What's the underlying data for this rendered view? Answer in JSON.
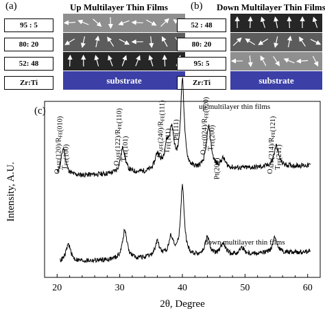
{
  "panel_a": {
    "letter": "(a)",
    "title": "Up Multilayer Thin Films",
    "ratio_header": "Zr:Ti",
    "layers": [
      {
        "ratio": "95 : 5",
        "color": "#8f8f8f"
      },
      {
        "ratio": "80: 20",
        "color": "#5c5c5c"
      },
      {
        "ratio": "52: 48",
        "color": "#262626"
      }
    ],
    "substrate": "substrate"
  },
  "panel_b": {
    "letter": "(b)",
    "title": "Down Multilayer Thin Films",
    "ratio_header": "Zr:Ti",
    "layers": [
      {
        "ratio": "52 : 48",
        "color": "#262626"
      },
      {
        "ratio": "80: 20",
        "color": "#5c5c5c"
      },
      {
        "ratio": "95: 5",
        "color": "#8f8f8f"
      }
    ],
    "substrate": "substrate"
  },
  "colors": {
    "substrate": "#3b3fa6",
    "arrow": "#ffffff",
    "trace": "#000000"
  },
  "chart_data": {
    "panel_letter": "(c)",
    "type": "line",
    "xlabel": "2θ, Degree",
    "ylabel": "Intensity, A.U.",
    "xlim": [
      18,
      62
    ],
    "xticks": [
      20,
      30,
      40,
      50,
      60
    ],
    "series": [
      {
        "name": "up multilayer thin films",
        "baseline": 1.0,
        "peaks": [
          [
            21.0,
            1.2
          ],
          [
            30.5,
            1.1
          ],
          [
            36.0,
            0.7
          ],
          [
            37.5,
            0.9
          ],
          [
            38.3,
            1.6
          ],
          [
            40.0,
            3.8
          ],
          [
            44.2,
            1.8
          ],
          [
            46.5,
            0.4
          ],
          [
            55.0,
            0.9
          ]
        ]
      },
      {
        "name": "down multilayer thin films",
        "baseline": 1.0,
        "peaks": [
          [
            21.8,
            0.8
          ],
          [
            30.8,
            1.3
          ],
          [
            36.0,
            0.7
          ],
          [
            38.2,
            0.9
          ],
          [
            40.0,
            3.2
          ],
          [
            44.0,
            0.8
          ],
          [
            46.5,
            0.5
          ],
          [
            49.5,
            0.3
          ],
          [
            54.8,
            0.7
          ]
        ]
      }
    ],
    "annotations": [
      {
        "x": 21.0,
        "lines": [
          "O_AFE(120)/R_FE(010)",
          "T_FE(100)"
        ]
      },
      {
        "x": 30.5,
        "lines": [
          "O_AFE(122)/R_FE(110)",
          "T_FE(101)"
        ]
      },
      {
        "x": 37.3,
        "lines": [
          "O_AFE(240)/R_FE(111)",
          "T_FE(111)"
        ]
      },
      {
        "x": 40.0,
        "lines": [
          "Pt(111)"
        ]
      },
      {
        "x": 44.3,
        "lines": [
          "O_AFE(024)/R_FE(020)",
          "T_FE(200)"
        ]
      },
      {
        "x": 46.5,
        "lines": [
          "Pt(200)"
        ]
      },
      {
        "x": 55.0,
        "lines": [
          "O_AFE(214)/R_FE(121)",
          "T_FE(211)"
        ]
      }
    ]
  }
}
